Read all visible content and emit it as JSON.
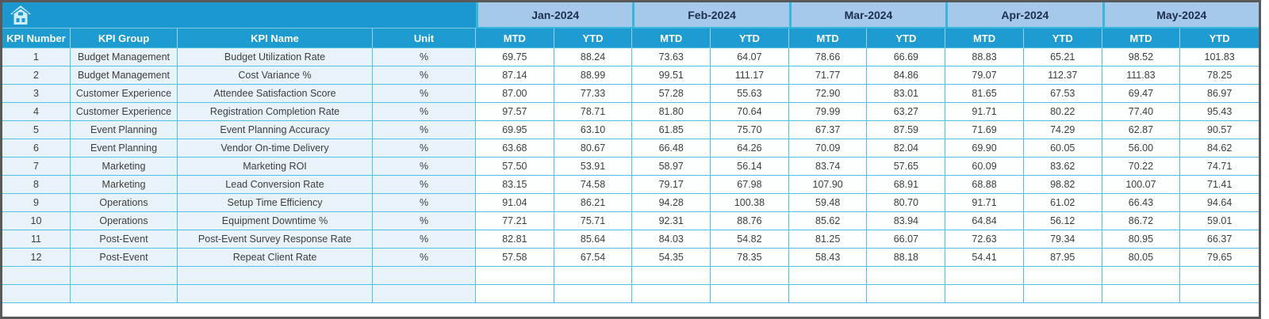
{
  "table": {
    "months": [
      "Jan-2024",
      "Feb-2024",
      "Mar-2024",
      "Apr-2024",
      "May-2024"
    ],
    "sub_headers": [
      "MTD",
      "YTD"
    ],
    "columns": [
      "KPI Number",
      "KPI Group",
      "KPI Name",
      "Unit"
    ],
    "rows": [
      {
        "num": "1",
        "group": "Budget Management",
        "name": "Budget Utilization Rate",
        "unit": "%",
        "values": [
          "69.75",
          "88.24",
          "73.63",
          "64.07",
          "78.66",
          "66.69",
          "88.83",
          "65.21",
          "98.52",
          "101.83"
        ]
      },
      {
        "num": "2",
        "group": "Budget Management",
        "name": "Cost Variance %",
        "unit": "%",
        "values": [
          "87.14",
          "88.99",
          "99.51",
          "111.17",
          "71.77",
          "84.86",
          "79.07",
          "112.37",
          "111.83",
          "78.25"
        ]
      },
      {
        "num": "3",
        "group": "Customer Experience",
        "name": "Attendee Satisfaction Score",
        "unit": "%",
        "values": [
          "87.00",
          "77.33",
          "57.28",
          "55.63",
          "72.90",
          "83.01",
          "81.65",
          "67.53",
          "69.47",
          "86.97"
        ]
      },
      {
        "num": "4",
        "group": "Customer Experience",
        "name": "Registration Completion Rate",
        "unit": "%",
        "values": [
          "97.57",
          "78.71",
          "81.80",
          "70.64",
          "79.99",
          "63.27",
          "91.71",
          "80.22",
          "77.40",
          "95.43"
        ]
      },
      {
        "num": "5",
        "group": "Event Planning",
        "name": "Event Planning Accuracy",
        "unit": "%",
        "values": [
          "69.95",
          "63.10",
          "61.85",
          "75.70",
          "67.37",
          "87.59",
          "71.69",
          "74.29",
          "62.87",
          "90.57"
        ]
      },
      {
        "num": "6",
        "group": "Event Planning",
        "name": "Vendor On-time Delivery",
        "unit": "%",
        "values": [
          "63.68",
          "80.67",
          "66.48",
          "64.26",
          "70.09",
          "82.04",
          "69.90",
          "60.05",
          "56.00",
          "84.62"
        ]
      },
      {
        "num": "7",
        "group": "Marketing",
        "name": "Marketing ROI",
        "unit": "%",
        "values": [
          "57.50",
          "53.91",
          "58.97",
          "56.14",
          "83.74",
          "57.65",
          "60.09",
          "83.62",
          "70.22",
          "74.71"
        ]
      },
      {
        "num": "8",
        "group": "Marketing",
        "name": "Lead Conversion Rate",
        "unit": "%",
        "values": [
          "83.15",
          "74.58",
          "79.17",
          "67.98",
          "107.90",
          "68.91",
          "68.88",
          "98.82",
          "100.07",
          "71.41"
        ]
      },
      {
        "num": "9",
        "group": "Operations",
        "name": "Setup Time Efficiency",
        "unit": "%",
        "values": [
          "91.04",
          "86.21",
          "94.28",
          "100.38",
          "59.48",
          "80.70",
          "91.71",
          "61.02",
          "66.43",
          "94.64"
        ]
      },
      {
        "num": "10",
        "group": "Operations",
        "name": "Equipment Downtime %",
        "unit": "%",
        "values": [
          "77.21",
          "75.71",
          "92.31",
          "88.76",
          "85.62",
          "83.94",
          "64.84",
          "56.12",
          "86.72",
          "59.01"
        ]
      },
      {
        "num": "11",
        "group": "Post-Event",
        "name": "Post-Event Survey Response Rate",
        "unit": "%",
        "values": [
          "82.81",
          "85.64",
          "84.03",
          "54.82",
          "81.25",
          "66.07",
          "72.63",
          "79.34",
          "80.95",
          "66.37"
        ]
      },
      {
        "num": "12",
        "group": "Post-Event",
        "name": "Repeat Client Rate",
        "unit": "%",
        "values": [
          "57.58",
          "67.54",
          "54.35",
          "78.35",
          "58.43",
          "88.18",
          "54.41",
          "87.95",
          "80.05",
          "79.65"
        ]
      }
    ],
    "empty_row_count": 2
  },
  "icons": {
    "home": "home-icon"
  },
  "colors": {
    "frame": "#595959",
    "header_bg": "#1e9cd2",
    "corner_bg": "#1b98cf",
    "month_bg": "#a7c9e9",
    "month_sep": "#35b7de",
    "grid": "#4cc1e3",
    "left_bg": "#e7f3f9",
    "cell_bg": "#fdfefe",
    "month_text": "#1c2f4e",
    "header_text": "#ffffff",
    "body_text": "#3d3d3d",
    "icon": "#cdeef8"
  }
}
